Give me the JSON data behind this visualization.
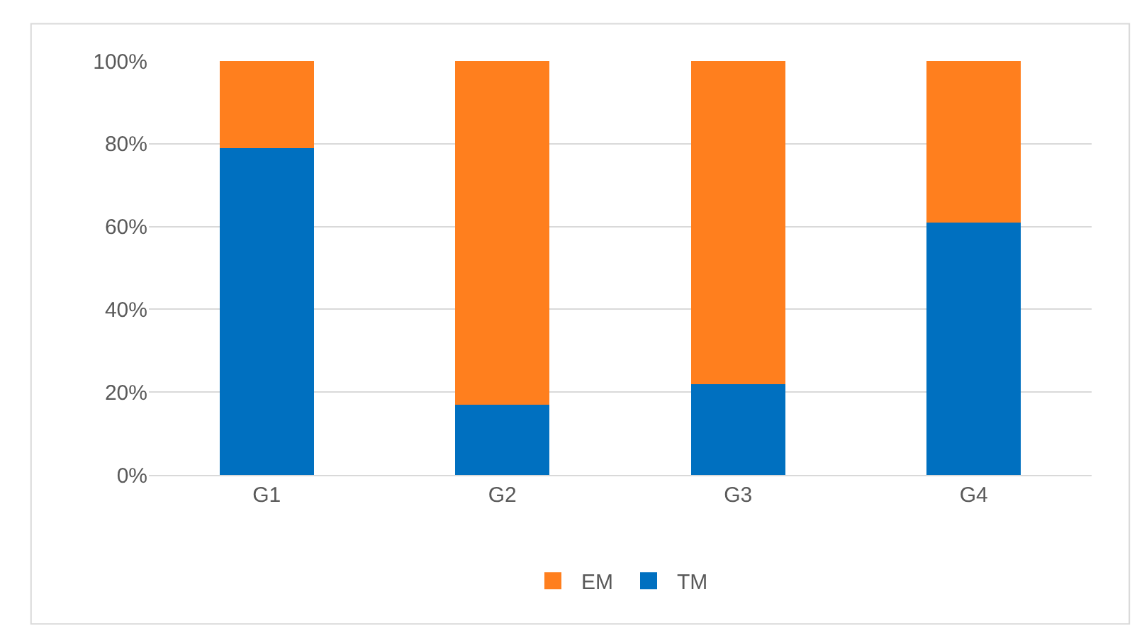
{
  "chart_data": {
    "type": "bar",
    "stacked": true,
    "categories": [
      "G1",
      "G2",
      "G3",
      "G4"
    ],
    "series": [
      {
        "name": "TM",
        "color": "#0070c0",
        "values": [
          79,
          17,
          22,
          61
        ]
      },
      {
        "name": "EM",
        "color": "#ff7f1e",
        "values": [
          21,
          83,
          78,
          39
        ]
      }
    ],
    "ylim": [
      0,
      100
    ],
    "yticks": [
      {
        "value": 0,
        "label": "0%"
      },
      {
        "value": 20,
        "label": "20%"
      },
      {
        "value": 40,
        "label": "40%"
      },
      {
        "value": 60,
        "label": "60%"
      },
      {
        "value": 80,
        "label": "80%"
      },
      {
        "value": 100,
        "label": "100%"
      }
    ],
    "grid": "y",
    "legend": "bottom"
  }
}
